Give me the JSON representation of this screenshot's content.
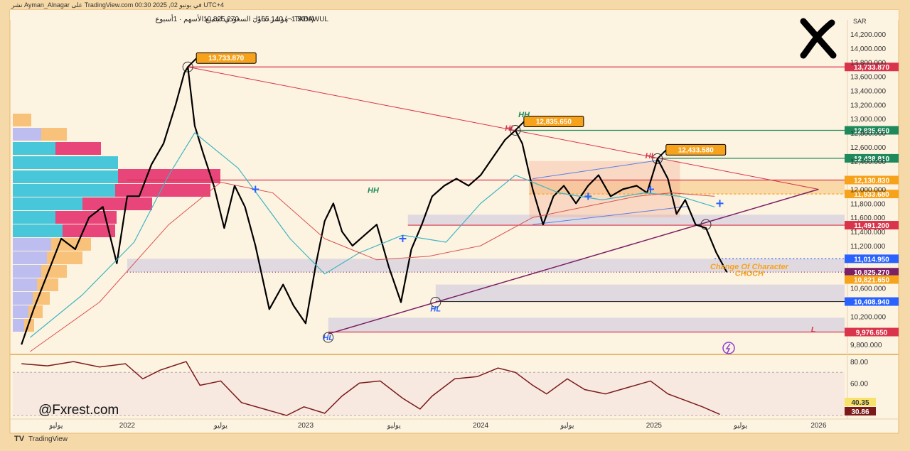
{
  "header": {
    "publisher_line": "نشر Ayman_Alnagar على TradingView.com في يونيو 02, 2025 00:30 UTC+4",
    "symbol_line": "مؤشر تداول السعودي لجميع الأسهم · 1أسبوع · TADAWUL",
    "price": "10,825.270",
    "change": "−165.140 (−1.50%)"
  },
  "currency": "SAR",
  "watermark": "@Fxrest.com",
  "footer_brand": "TradingView",
  "colors": {
    "background": "#fdf3e1",
    "outer": "#f6d9a8",
    "price_line": "#000000",
    "ma_fast": "#3fb6c2",
    "ma_slow": "#d9534f",
    "resistance": "#d9344b",
    "green_level": "#1e8a5c",
    "blue_label": "#2962ff",
    "orange_label": "#f7a21b",
    "trendline": "#7b1f66",
    "rsi": "#7a1a1a"
  },
  "chart_data": [
    {
      "type": "line",
      "title": "",
      "timeframe": "1W",
      "x_ticks": [
        "يوليو",
        "2022",
        "يوليو",
        "2023",
        "يوليو",
        "2024",
        "يوليو",
        "2025",
        "يوليو",
        "2026"
      ],
      "y_ticks": [
        "14,200.000",
        "14,000.000",
        "13,800.000",
        "13,600.000",
        "13,400.000",
        "13,200.000",
        "13,000.000",
        "12,800.000",
        "12,600.000",
        "12,400.000",
        "12,000.000",
        "11,800.000",
        "11,600.000",
        "11,400.000",
        "11,200.000",
        "10,600.000",
        "10,200.000",
        "9,800.000"
      ],
      "y_tick_values": [
        14200,
        14000,
        13800,
        13600,
        13400,
        13200,
        13000,
        12800,
        12600,
        12400,
        12000,
        11800,
        11600,
        11400,
        11200,
        10600,
        10200,
        9800
      ],
      "ylim": [
        9700,
        14300
      ],
      "xlim": [
        2021.3,
        2026.1
      ],
      "grid": false,
      "series": [
        {
          "x": [
            2021.35,
            2021.42,
            2021.5,
            2021.58,
            2021.66,
            2021.74,
            2021.82,
            2021.9,
            2021.96,
            2022.03,
            2022.1,
            2022.17,
            2022.24,
            2022.29,
            2022.31,
            2022.35,
            2022.4,
            2022.46,
            2022.52,
            2022.58,
            2022.64,
            2022.7,
            2022.78,
            2022.86,
            2022.92,
            2022.99,
            2023.05,
            2023.1,
            2023.15,
            2023.2,
            2023.26,
            2023.33,
            2023.4,
            2023.47,
            2023.54,
            2023.6,
            2023.66,
            2023.72,
            2023.79,
            2023.86,
            2023.93,
            2024.0,
            2024.07,
            2024.14,
            2024.2,
            2024.24,
            2024.3,
            2024.36,
            2024.42,
            2024.48,
            2024.55,
            2024.62,
            2024.68,
            2024.75,
            2024.82,
            2024.9,
            2024.96,
            2025.02,
            2025.08,
            2025.13,
            2025.18,
            2025.24,
            2025.3,
            2025.36,
            2025.42
          ],
          "values": [
            9800,
            10300,
            10800,
            11300,
            11150,
            11600,
            11750,
            10950,
            11900,
            11900,
            12350,
            12650,
            13200,
            13650,
            13733,
            12900,
            12500,
            12050,
            11450,
            12050,
            11750,
            11200,
            10300,
            10650,
            10350,
            10100,
            10950,
            11550,
            11800,
            11400,
            11200,
            11350,
            11500,
            10900,
            10400,
            11150,
            11500,
            11900,
            12050,
            12150,
            12050,
            12200,
            12450,
            12700,
            12835,
            12650,
            12000,
            11500,
            11900,
            12050,
            11800,
            12050,
            12200,
            11900,
            12000,
            12050,
            11950,
            12433,
            12150,
            11650,
            11850,
            11500,
            11450,
            11100,
            10825
          ]
        },
        {
          "name": "",
          "x": [
            2021.4,
            2021.7,
            2022.0,
            2022.2,
            2022.35,
            2022.6,
            2022.9,
            2023.1,
            2023.3,
            2023.55,
            2023.8,
            2024.0,
            2024.2,
            2024.45,
            2024.7,
            2024.95,
            2025.15,
            2025.35
          ],
          "values": [
            9900,
            10500,
            11250,
            12200,
            12800,
            12300,
            11300,
            10800,
            11100,
            11350,
            11250,
            11800,
            12200,
            11950,
            11850,
            11950,
            11900,
            11750
          ]
        },
        {
          "name": "",
          "x": [
            2021.4,
            2021.8,
            2022.2,
            2022.5,
            2022.8,
            2023.1,
            2023.4,
            2023.7,
            2024.0,
            2024.3,
            2024.6,
            2024.9,
            2025.1,
            2025.35
          ],
          "values": [
            9700,
            10400,
            11500,
            12100,
            11950,
            11300,
            11000,
            11050,
            11200,
            11600,
            11750,
            11900,
            11950,
            11900
          ]
        }
      ],
      "price_labels": [
        {
          "value": 13733.87,
          "text": "13,733.870",
          "color": "#d9344b"
        },
        {
          "value": 12835.65,
          "text": "12,835.650",
          "color": "#1e8a5c"
        },
        {
          "value": 12438.81,
          "text": "12,438.810",
          "color": "#1e8a5c"
        },
        {
          "value": 12130.83,
          "text": "12,130.830",
          "color": "#f7a21b"
        },
        {
          "value": 11933.68,
          "text": "11,933.680",
          "color": "#f7a21b"
        },
        {
          "value": 11491.2,
          "text": "11,491.200",
          "color": "#d9344b"
        },
        {
          "value": 11014.95,
          "text": "11,014.950",
          "color": "#2962ff"
        },
        {
          "value": 10825.27,
          "text": "10,825.270",
          "color": "#7b1f66"
        },
        {
          "value": 10821.65,
          "text": "10,821.650",
          "color": "#f7a21b"
        },
        {
          "value": 10408.94,
          "text": "10,408.940",
          "color": "#2962ff"
        },
        {
          "value": 9976.65,
          "text": "9,976.650",
          "color": "#d9344b"
        }
      ],
      "callouts": [
        {
          "text": "13,733.870",
          "x": 2022.31,
          "y": 13733.87
        },
        {
          "text": "12,835.650",
          "x": 2024.2,
          "y": 12835.65
        },
        {
          "text": "12,433.580",
          "x": 2025.02,
          "y": 12433.58
        }
      ],
      "annotations": [
        {
          "text": "HH",
          "x": 2024.25,
          "y": 13020
        },
        {
          "text": "HL",
          "x": 2024.17,
          "y": 12830
        },
        {
          "text": "HL",
          "x": 2024.98,
          "y": 12440
        },
        {
          "text": "HH",
          "x": 2023.38,
          "y": 11950
        },
        {
          "text": "HL",
          "x": 2023.74,
          "y": 10270
        },
        {
          "text": "HL",
          "x": 2023.12,
          "y": 9860
        },
        {
          "text": "L",
          "x": 2025.92,
          "y": 9976
        },
        {
          "text": "Change Of Character",
          "x": 2025.55,
          "y": 10870
        },
        {
          "text": "CHOCH",
          "x": 2025.55,
          "y": 10770
        }
      ]
    },
    {
      "type": "line",
      "title": "",
      "indicator": "RSI",
      "y_ticks": [
        "80.00",
        "60.00"
      ],
      "y_tick_values": [
        80,
        60
      ],
      "ylim": [
        28,
        84
      ],
      "value_labels": [
        {
          "text": "40.35",
          "color": "#f7e36b"
        },
        {
          "text": "30.86",
          "color": "#7a1a1a"
        }
      ],
      "series": [
        {
          "x": [
            2021.35,
            2021.5,
            2021.65,
            2021.8,
            2021.95,
            2022.05,
            2022.15,
            2022.3,
            2022.38,
            2022.5,
            2022.62,
            2022.75,
            2022.88,
            2022.98,
            2023.1,
            2023.2,
            2023.3,
            2023.42,
            2023.55,
            2023.65,
            2023.72,
            2023.85,
            2023.98,
            2024.1,
            2024.2,
            2024.3,
            2024.38,
            2024.5,
            2024.6,
            2024.72,
            2024.85,
            2024.98,
            2025.08,
            2025.18,
            2025.28,
            2025.38
          ],
          "values": [
            78,
            76,
            80,
            75,
            78,
            64,
            72,
            80,
            58,
            62,
            42,
            36,
            30,
            38,
            32,
            48,
            60,
            62,
            46,
            36,
            48,
            64,
            66,
            74,
            70,
            58,
            50,
            64,
            54,
            50,
            56,
            62,
            50,
            44,
            38,
            31
          ]
        }
      ]
    }
  ]
}
